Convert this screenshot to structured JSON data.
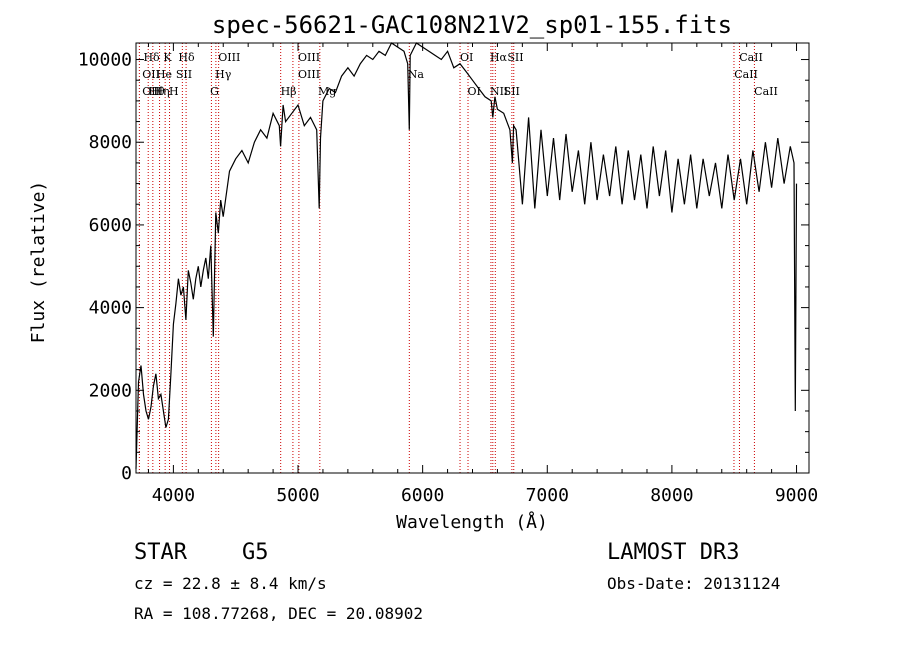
{
  "chart_data": {
    "type": "line",
    "title": "spec-56621-GAC108N21V2_sp01-155.fits",
    "xlabel": "Wavelength (Å)",
    "ylabel": "Flux (relative)",
    "xlim": [
      3700,
      9100
    ],
    "ylim": [
      0,
      10400
    ],
    "xticks": [
      4000,
      5000,
      6000,
      7000,
      8000,
      9000
    ],
    "yticks": [
      0,
      2000,
      4000,
      6000,
      8000,
      10000
    ],
    "grid": false,
    "series": [
      {
        "name": "flux",
        "x": [
          3700,
          3720,
          3740,
          3760,
          3780,
          3800,
          3820,
          3840,
          3860,
          3880,
          3900,
          3920,
          3940,
          3960,
          3980,
          4000,
          4020,
          4040,
          4060,
          4080,
          4100,
          4120,
          4140,
          4160,
          4180,
          4200,
          4220,
          4240,
          4260,
          4280,
          4300,
          4320,
          4340,
          4360,
          4380,
          4400,
          4450,
          4500,
          4550,
          4600,
          4650,
          4700,
          4750,
          4800,
          4850,
          4860,
          4880,
          4900,
          4950,
          5000,
          5050,
          5100,
          5150,
          5170,
          5180,
          5200,
          5250,
          5300,
          5350,
          5400,
          5450,
          5500,
          5550,
          5600,
          5650,
          5700,
          5750,
          5800,
          5850,
          5880,
          5893,
          5900,
          5950,
          6000,
          6050,
          6100,
          6150,
          6200,
          6250,
          6300,
          6350,
          6400,
          6450,
          6500,
          6550,
          6563,
          6580,
          6600,
          6650,
          6700,
          6720,
          6730,
          6750,
          6800,
          6850,
          6900,
          6950,
          7000,
          7050,
          7100,
          7150,
          7200,
          7250,
          7300,
          7350,
          7400,
          7450,
          7500,
          7550,
          7600,
          7650,
          7700,
          7750,
          7800,
          7850,
          7900,
          7950,
          8000,
          8050,
          8100,
          8150,
          8200,
          8250,
          8300,
          8350,
          8400,
          8450,
          8500,
          8550,
          8600,
          8650,
          8700,
          8750,
          8800,
          8850,
          8900,
          8950,
          8980,
          8990,
          9000
        ],
        "y": [
          100,
          2200,
          2600,
          1900,
          1500,
          1300,
          1600,
          2100,
          2400,
          1800,
          1900,
          1500,
          1100,
          1300,
          2400,
          3600,
          4100,
          4700,
          4300,
          4500,
          3700,
          4900,
          4600,
          4200,
          4700,
          5000,
          4500,
          4900,
          5200,
          4700,
          5500,
          3300,
          6300,
          5800,
          6600,
          6200,
          7300,
          7600,
          7800,
          7500,
          8000,
          8300,
          8100,
          8700,
          8400,
          7900,
          8900,
          8500,
          8700,
          8900,
          8400,
          8600,
          8300,
          6400,
          8100,
          9000,
          9300,
          9200,
          9600,
          9800,
          9600,
          9900,
          10100,
          10000,
          10200,
          10100,
          10400,
          10300,
          10200,
          9900,
          8300,
          10100,
          10400,
          10300,
          10200,
          10100,
          10000,
          10200,
          9800,
          9900,
          9700,
          9500,
          9300,
          9100,
          9000,
          8600,
          9100,
          8800,
          8700,
          8300,
          7500,
          8400,
          8300,
          6500,
          8600,
          6400,
          8300,
          6700,
          8100,
          6600,
          8200,
          6800,
          7800,
          6500,
          8000,
          6600,
          7700,
          6700,
          7900,
          6500,
          7800,
          6600,
          7700,
          6400,
          7900,
          6700,
          7800,
          6300,
          7600,
          6500,
          7700,
          6400,
          7600,
          6700,
          7500,
          6400,
          7700,
          6600,
          7600,
          6500,
          7800,
          6800,
          8000,
          6900,
          8100,
          7000,
          7900,
          7500,
          1500,
          7000
        ]
      }
    ],
    "lines": [
      {
        "label": "OII",
        "x": 3727
      },
      {
        "label": "Hθ",
        "x": 3798
      },
      {
        "label": "Hη",
        "x": 3835
      },
      {
        "label": "HeI",
        "x": 3889
      },
      {
        "label": "K",
        "x": 3934
      },
      {
        "label": "H",
        "x": 3969
      },
      {
        "label": "Hδ",
        "x": 4102
      },
      {
        "label": "SII",
        "x": 4072
      },
      {
        "label": "G",
        "x": 4305
      },
      {
        "label": "Hγ",
        "x": 4341
      },
      {
        "label": "OIII",
        "x": 4363
      },
      {
        "label": "Hβ",
        "x": 4861
      },
      {
        "label": "OIII",
        "x": 4959
      },
      {
        "label": "OIII",
        "x": 5007
      },
      {
        "label": "Mg",
        "x": 5175
      },
      {
        "label": "Na",
        "x": 5893
      },
      {
        "label": "OI",
        "x": 6300
      },
      {
        "label": "OI",
        "x": 6364
      },
      {
        "label": "NII",
        "x": 6548
      },
      {
        "label": "Hα",
        "x": 6563
      },
      {
        "label": "NII",
        "x": 6583
      },
      {
        "label": "SII",
        "x": 6716
      },
      {
        "label": "SII",
        "x": 6731
      },
      {
        "label": "CaII",
        "x": 8498
      },
      {
        "label": "CaII",
        "x": 8542
      },
      {
        "label": "CaII",
        "x": 8662
      }
    ],
    "line_labels": [
      {
        "text": "Hδ",
        "row": 0,
        "x": 3760
      },
      {
        "text": "OII",
        "row": 1,
        "x": 3750
      },
      {
        "text": "OII",
        "row": 2,
        "x": 3750
      },
      {
        "text": "Hθ",
        "row": 2,
        "x": 3800
      },
      {
        "text": "Hη",
        "row": 2,
        "x": 3840
      },
      {
        "text": "He",
        "row": 1,
        "x": 3860
      },
      {
        "text": "K",
        "row": 0,
        "x": 3920
      },
      {
        "text": "SII",
        "row": 1,
        "x": 4020
      },
      {
        "text": "H",
        "row": 2,
        "x": 3965
      },
      {
        "text": "Hδ",
        "row": 0,
        "x": 4040
      },
      {
        "text": "OIII",
        "row": 0,
        "x": 4360
      },
      {
        "text": "Hγ",
        "row": 1,
        "x": 4335
      },
      {
        "text": "G",
        "row": 2,
        "x": 4295
      },
      {
        "text": "OIII",
        "row": 0,
        "x": 5000
      },
      {
        "text": "OIII",
        "row": 1,
        "x": 5000
      },
      {
        "text": "Hβ",
        "row": 2,
        "x": 4860
      },
      {
        "text": "Mg",
        "row": 2,
        "x": 5160
      },
      {
        "text": "Na",
        "row": 1,
        "x": 5880
      },
      {
        "text": "OI",
        "row": 0,
        "x": 6300
      },
      {
        "text": "OI",
        "row": 2,
        "x": 6360
      },
      {
        "text": "Hα",
        "row": 0,
        "x": 6540
      },
      {
        "text": "SII",
        "row": 0,
        "x": 6680
      },
      {
        "text": "NII",
        "row": 2,
        "x": 6540
      },
      {
        "text": "SII",
        "row": 2,
        "x": 6650
      },
      {
        "text": "CaII",
        "row": 0,
        "x": 8540
      },
      {
        "text": "CaII",
        "row": 1,
        "x": 8500
      },
      {
        "text": "CaII",
        "row": 2,
        "x": 8660
      }
    ],
    "line_color": "#cc0000",
    "spectrum_color": "#000000"
  },
  "footer": {
    "object_class": "STAR",
    "subclass": "G5",
    "survey": "LAMOST DR3",
    "redshift": "cz = 22.8 ± 8.4 km/s",
    "obs_date": "Obs-Date: 20131124",
    "coords": "RA = 108.77268, DEC =  20.08902"
  }
}
